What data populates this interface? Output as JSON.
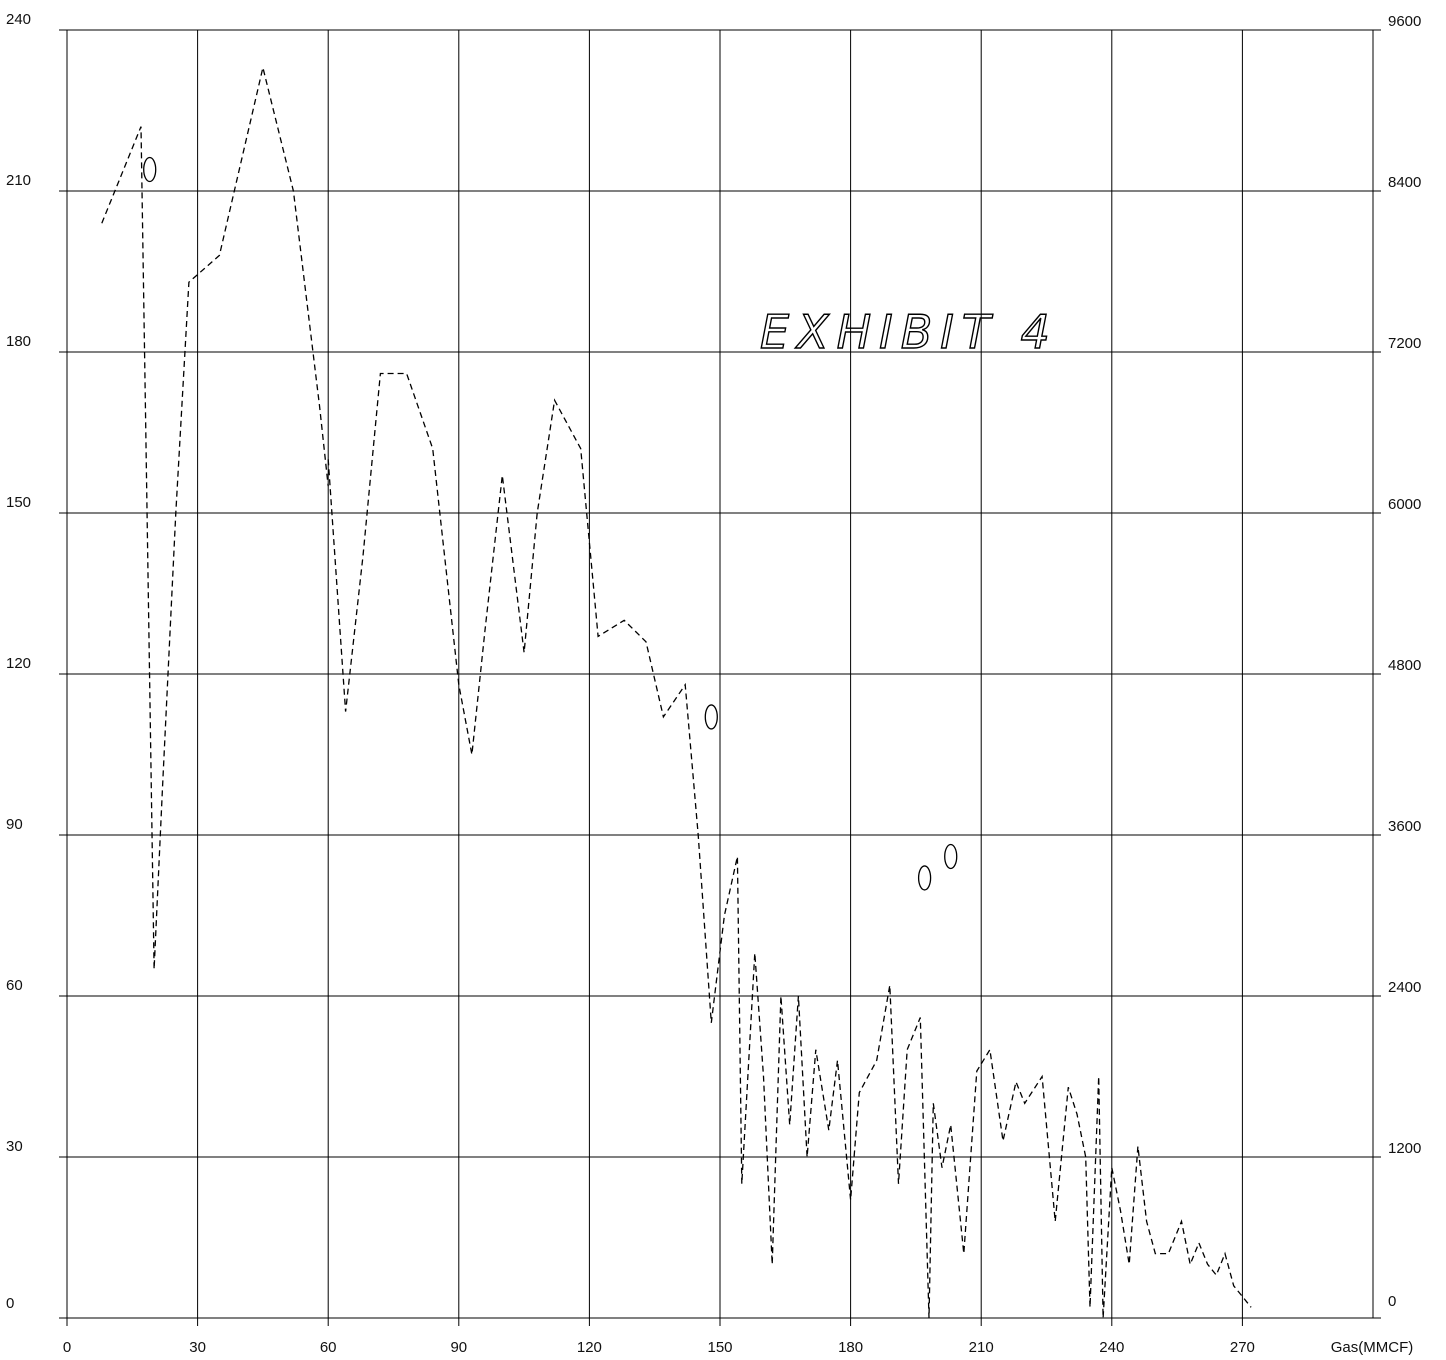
{
  "chart_data": {
    "type": "line",
    "annotation": "EXHIBIT 4",
    "xlabel": "Gas(MMCF)",
    "xlim": [
      0,
      300
    ],
    "ylim_left": [
      0,
      240
    ],
    "ylim_right": [
      0,
      9600
    ],
    "x_ticks": [
      "0",
      "30",
      "60",
      "90",
      "120",
      "150",
      "180",
      "210",
      "240",
      "270"
    ],
    "y_left_ticks": [
      "0",
      "30",
      "60",
      "90",
      "120",
      "150",
      "180",
      "210",
      "240"
    ],
    "y_right_ticks": [
      "0",
      "1200",
      "2400",
      "3600",
      "4800",
      "6000",
      "7200",
      "8400",
      "9600"
    ],
    "grid": true,
    "series": [
      {
        "style": "dash-dot",
        "x": [
          8,
          17,
          18,
          20,
          22,
          25,
          28,
          35,
          45,
          52,
          58,
          60
        ],
        "y": [
          204,
          222,
          170,
          65,
          100,
          150,
          193,
          198,
          233,
          210,
          170,
          155
        ]
      },
      {
        "style": "dashed",
        "x": [
          60,
          64,
          68,
          72,
          78,
          84,
          90,
          93,
          96,
          100,
          105,
          108,
          112,
          118,
          122,
          128,
          133,
          137,
          142,
          145,
          148,
          151,
          154,
          155,
          158,
          160,
          162,
          164,
          166,
          168,
          170,
          172,
          175,
          177,
          180,
          182,
          186,
          189,
          191,
          193,
          196,
          198,
          199,
          201,
          203,
          206,
          209,
          212,
          215,
          218,
          220,
          224,
          227,
          230,
          232,
          234,
          235,
          237,
          238,
          240,
          242,
          244,
          246,
          248,
          250,
          253,
          256,
          258,
          260,
          262,
          264,
          266,
          268,
          270,
          272
        ],
        "y": [
          160,
          113,
          142,
          176,
          176,
          162,
          118,
          105,
          128,
          157,
          124,
          150,
          171,
          162,
          127,
          130,
          126,
          112,
          118,
          90,
          55,
          75,
          86,
          25,
          68,
          45,
          10,
          60,
          36,
          60,
          30,
          50,
          35,
          48,
          22,
          42,
          48,
          62,
          25,
          50,
          56,
          0,
          40,
          28,
          36,
          12,
          46,
          50,
          33,
          44,
          40,
          45,
          18,
          43,
          38,
          30,
          2,
          45,
          0,
          28,
          20,
          10,
          32,
          18,
          12,
          12,
          18,
          10,
          14,
          10,
          8,
          12,
          6,
          4,
          2
        ]
      }
    ],
    "points": [
      {
        "x": 19,
        "y": 214
      },
      {
        "x": 148,
        "y": 112
      },
      {
        "x": 197,
        "y": 82
      },
      {
        "x": 203,
        "y": 86
      }
    ]
  }
}
